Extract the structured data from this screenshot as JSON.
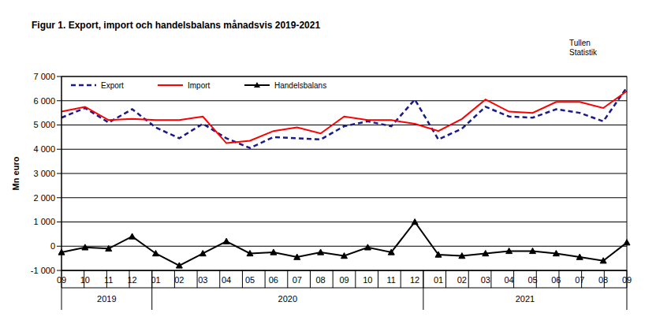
{
  "chart_data": {
    "type": "line",
    "title": "Figur 1. Export, import och handelsbalans månadsvis 2019-2021",
    "annotations": [
      "Tullen",
      "Statistik"
    ],
    "y_label": "Mn euro",
    "categories": [
      "09",
      "10",
      "11",
      "12",
      "01",
      "02",
      "03",
      "04",
      "05",
      "06",
      "07",
      "08",
      "09",
      "10",
      "11",
      "12",
      "01",
      "02",
      "03",
      "04",
      "05",
      "06",
      "07",
      "08",
      "09"
    ],
    "groups": [
      {
        "label": "2019",
        "size": 4
      },
      {
        "label": "2020",
        "size": 12
      },
      {
        "label": "2021",
        "size": 9
      }
    ],
    "series": [
      {
        "name": "Export",
        "color": "#1a1a8c",
        "line_style": "dashed",
        "marker": "none",
        "values": [
          5300,
          5700,
          5100,
          5650,
          4900,
          4450,
          5050,
          4450,
          4050,
          4500,
          4450,
          4400,
          4950,
          5150,
          4950,
          6050,
          4400,
          4850,
          5750,
          5350,
          5300,
          5650,
          5500,
          5150,
          6550
        ]
      },
      {
        "name": "Import",
        "color": "#ff0000",
        "line_style": "solid",
        "marker": "none",
        "values": [
          5550,
          5750,
          5200,
          5250,
          5200,
          5200,
          5350,
          4250,
          4350,
          4750,
          4900,
          4650,
          5350,
          5200,
          5200,
          5050,
          4750,
          5250,
          6050,
          5550,
          5500,
          5950,
          5950,
          5700,
          6400
        ]
      },
      {
        "name": "Handelsbalans",
        "color": "#000000",
        "line_style": "solid",
        "marker": "triangle",
        "values": [
          -250,
          -50,
          -100,
          400,
          -300,
          -800,
          -300,
          200,
          -300,
          -250,
          -450,
          -250,
          -400,
          -50,
          -250,
          1000,
          -350,
          -400,
          -300,
          -200,
          -200,
          -300,
          -450,
          -600,
          150
        ]
      }
    ],
    "ylim": [
      -1000,
      7000
    ],
    "yticks": [
      {
        "value": -1000,
        "label": "-1 000"
      },
      0,
      {
        "value": 1000,
        "label": "1 000"
      },
      {
        "value": 2000,
        "label": "2 000"
      },
      {
        "value": 3000,
        "label": "3 000"
      },
      {
        "value": 4000,
        "label": "4 000"
      },
      {
        "value": 5000,
        "label": "5 000"
      },
      {
        "value": 6000,
        "label": "6 000"
      },
      {
        "value": 7000,
        "label": "7 000"
      }
    ],
    "grid": true,
    "legend": "upper left"
  }
}
